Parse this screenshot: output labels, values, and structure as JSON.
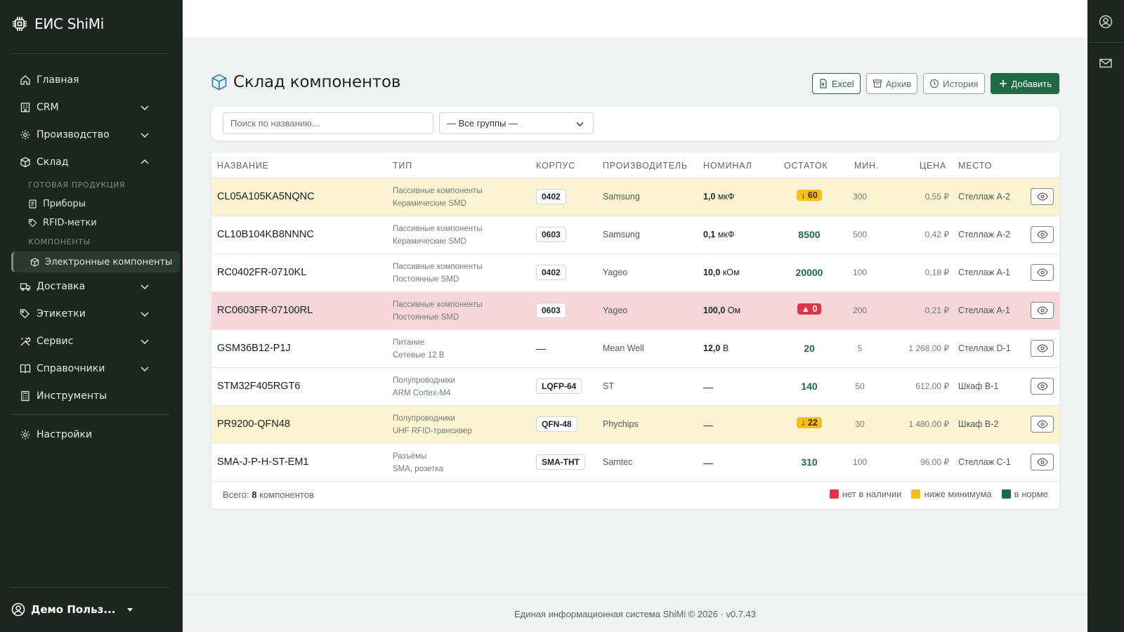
{
  "app": {
    "name": "ЕИС ShiMi"
  },
  "sidebar": {
    "items": [
      {
        "label": "Главная"
      },
      {
        "label": "CRM"
      },
      {
        "label": "Производство"
      },
      {
        "label": "Склад"
      },
      {
        "label": "Доставка"
      },
      {
        "label": "Этикетки"
      },
      {
        "label": "Сервис"
      },
      {
        "label": "Справочники"
      },
      {
        "label": "Инструменты"
      },
      {
        "label": "Настройки"
      }
    ],
    "section_products": "ГОТОВАЯ ПРОДУКЦИЯ",
    "sub_devices": "Приборы",
    "sub_rfid": "RFID-метки",
    "section_components": "КОМПОНЕНТЫ",
    "sub_components": "Электронные компоненты",
    "user": "Демо Польз..."
  },
  "page": {
    "title": "Склад компонентов"
  },
  "actions": {
    "excel": "Excel",
    "archive": "Архив",
    "history": "История",
    "add": "Добавить"
  },
  "filters": {
    "search_placeholder": "Поиск по названию...",
    "group": "— Все группы —"
  },
  "table": {
    "headers": {
      "name": "НАЗВАНИЕ",
      "type": "ТИП",
      "package": "КОРПУС",
      "manufacturer": "ПРОИЗВОДИТЕЛЬ",
      "nominal": "НОМИНАЛ",
      "stock": "ОСТАТОК",
      "min": "МИН.",
      "price": "ЦЕНА",
      "location": "МЕСТО"
    },
    "rows": [
      {
        "name": "CL05A105KA5NQNC",
        "type1": "Пассивные компоненты",
        "type2": "Керамические SMD",
        "package": "0402",
        "mfr": "Samsung",
        "nominal_val": "1,0",
        "nominal_unit": "мкФ",
        "stock": "↓ 60",
        "min": "300",
        "price": "0,55 ₽",
        "loc": "Стеллаж А-2",
        "status": "warn"
      },
      {
        "name": "CL10B104KB8NNNC",
        "type1": "Пассивные компоненты",
        "type2": "Керамические SMD",
        "package": "0603",
        "mfr": "Samsung",
        "nominal_val": "0,1",
        "nominal_unit": "мкФ",
        "stock": "8500",
        "min": "500",
        "price": "0,42 ₽",
        "loc": "Стеллаж А-2",
        "status": "ok"
      },
      {
        "name": "RC0402FR-0710KL",
        "type1": "Пассивные компоненты",
        "type2": "Постоянные SMD",
        "package": "0402",
        "mfr": "Yageo",
        "nominal_val": "10,0",
        "nominal_unit": "кОм",
        "stock": "20000",
        "min": "100",
        "price": "0,18 ₽",
        "loc": "Стеллаж А-1",
        "status": "ok"
      },
      {
        "name": "RC0603FR-07100RL",
        "type1": "Пассивные компоненты",
        "type2": "Постоянные SMD",
        "package": "0603",
        "mfr": "Yageo",
        "nominal_val": "100,0",
        "nominal_unit": "Ом",
        "stock": "0",
        "min": "200",
        "price": "0,21 ₽",
        "loc": "Стеллаж А-1",
        "status": "danger"
      },
      {
        "name": "GSM36B12-P1J",
        "type1": "Питание",
        "type2": "Сетевые 12 В",
        "package": "—",
        "mfr": "Mean Well",
        "nominal_val": "12,0",
        "nominal_unit": "В",
        "stock": "20",
        "min": "5",
        "price": "1 268,00 ₽",
        "loc": "Стеллаж D-1",
        "status": "ok"
      },
      {
        "name": "STM32F405RGT6",
        "type1": "Полупроводники",
        "type2": "ARM Cortex-M4",
        "package": "LQFP-64",
        "mfr": "ST",
        "nominal_val": "—",
        "nominal_unit": "",
        "stock": "140",
        "min": "50",
        "price": "612,00 ₽",
        "loc": "Шкаф B-1",
        "status": "ok"
      },
      {
        "name": "PR9200-QFN48",
        "type1": "Полупроводники",
        "type2": "UHF RFID-трансивер",
        "package": "QFN-48",
        "mfr": "Phychips",
        "nominal_val": "—",
        "nominal_unit": "",
        "stock": "↓ 22",
        "min": "30",
        "price": "1 480,00 ₽",
        "loc": "Шкаф B-2",
        "status": "warn"
      },
      {
        "name": "SMA-J-P-H-ST-EM1",
        "type1": "Разъёмы",
        "type2": "SMA, розетка",
        "package": "SMA-THT",
        "mfr": "Samtec",
        "nominal_val": "—",
        "nominal_unit": "",
        "stock": "310",
        "min": "100",
        "price": "96,00 ₽",
        "loc": "Стеллаж C-1",
        "status": "ok"
      }
    ],
    "footer": {
      "total_label": "Всего:",
      "total_count": "8",
      "total_suffix": "компонентов"
    },
    "legend": {
      "none": "нет в наличии",
      "below": "ниже минимума",
      "ok": "в норме"
    }
  },
  "colors": {
    "brand": "#1e6a45",
    "warn": "#f8bf1c",
    "danger": "#dc3545",
    "sidebar": "#1b2621"
  },
  "footer": {
    "text": "Единая информационная система ShiMi © 2026 · v0.7.43"
  }
}
